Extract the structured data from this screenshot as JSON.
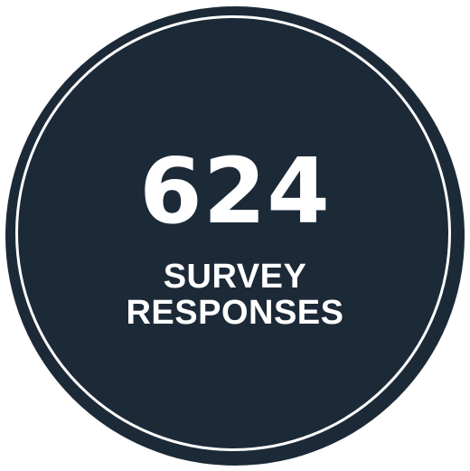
{
  "badge": {
    "number": "624",
    "label_line1": "SURVEY",
    "label_line2": "RESPONSES",
    "colors": {
      "fill": "#1c2a38",
      "ring": "#ffffff",
      "text": "#ffffff",
      "background": "#ffffff"
    }
  }
}
